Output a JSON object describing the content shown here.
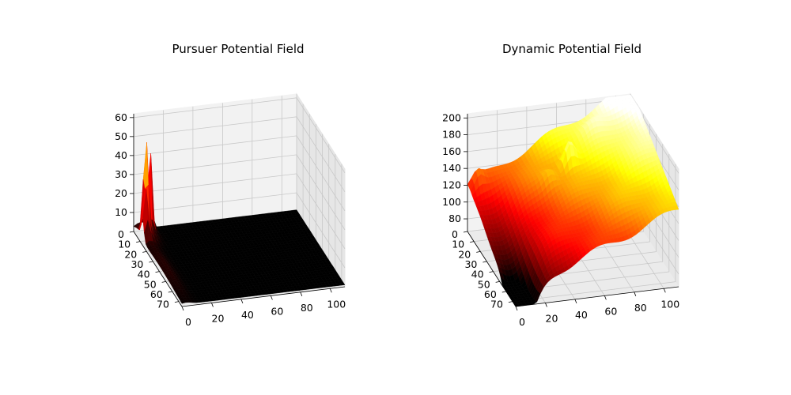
{
  "chart_data": [
    {
      "type": "surface3d",
      "title": "Pursuer Potential Field",
      "x_ticks": [
        "0",
        "20",
        "40",
        "60",
        "80",
        "100"
      ],
      "y_ticks": [
        "0",
        "10",
        "20",
        "30",
        "40",
        "50",
        "60",
        "70"
      ],
      "z_ticks": [
        "10",
        "20",
        "30",
        "40",
        "50",
        "60"
      ],
      "x_range": [
        0,
        110
      ],
      "y_range": [
        0,
        75
      ],
      "z_range": [
        0,
        62
      ],
      "colormap": "hot",
      "grid": true,
      "description_values": {
        "peaks": [
          {
            "x": 4,
            "y": 10,
            "z": 58
          },
          {
            "x": 9,
            "y": 4,
            "z": 48
          },
          {
            "x": 2,
            "y": 14,
            "z": 25
          }
        ],
        "baseline_z": 1
      }
    },
    {
      "type": "surface3d",
      "title": "Dynamic Potential Field",
      "x_ticks": [
        "0",
        "20",
        "40",
        "60",
        "80",
        "100"
      ],
      "y_ticks": [
        "0",
        "10",
        "20",
        "30",
        "40",
        "50",
        "60",
        "70"
      ],
      "z_ticks": [
        "80",
        "100",
        "120",
        "140",
        "160",
        "180",
        "200"
      ],
      "x_range": [
        0,
        110
      ],
      "y_range": [
        0,
        75
      ],
      "z_range": [
        65,
        205
      ],
      "colormap": "hot",
      "grid": true,
      "description_values": {
        "min": {
          "x": 3,
          "y": 68,
          "z": 68
        },
        "max": {
          "x": 95,
          "y": 5,
          "z": 200
        },
        "local_peak": {
          "x": 60,
          "y": 20,
          "z": 165
        }
      }
    }
  ]
}
